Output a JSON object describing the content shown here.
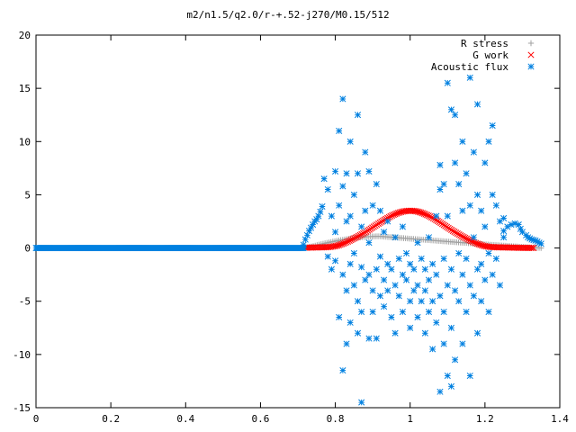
{
  "chart_data": {
    "type": "scatter",
    "title": "m2/n1.5/q2.0/r-+.52-j270/M0.15/512",
    "xlabel": "",
    "ylabel": "",
    "xlim": [
      0,
      1.4
    ],
    "ylim": [
      -15,
      20
    ],
    "x_ticks": [
      "0",
      "0.2",
      "0.4",
      "0.6",
      "0.8",
      "1",
      "1.2",
      "1.4"
    ],
    "y_ticks": [
      "20",
      "15",
      "10",
      "5",
      "0",
      "-5",
      "-10",
      "-15"
    ],
    "grid": false,
    "legend_position": "top-right",
    "series": [
      {
        "name": "R stress",
        "marker": "+",
        "color": "#a0a0a0",
        "curve": "r_stress",
        "x_range": [
          0.72,
          1.35
        ],
        "peak": {
          "x": 0.92,
          "y": 1.1
        }
      },
      {
        "name": "G work",
        "marker": "x",
        "color": "#ff0000",
        "curve": "g_work",
        "x_range": [
          0.72,
          1.33
        ],
        "peak": {
          "x": 1.0,
          "y": 3.5
        }
      },
      {
        "name": "Acoustic flux",
        "marker": "*",
        "color": "#0080e0",
        "curve": "acoustic_flux",
        "zero_region_x": [
          0.0,
          0.715
        ],
        "inner_branch": [
          [
            0.715,
            0.3
          ],
          [
            0.72,
            0.8
          ],
          [
            0.725,
            1.2
          ],
          [
            0.73,
            1.6
          ],
          [
            0.735,
            1.9
          ],
          [
            0.74,
            2.2
          ],
          [
            0.745,
            2.5
          ],
          [
            0.75,
            2.7
          ],
          [
            0.755,
            3.0
          ],
          [
            0.76,
            3.4
          ],
          [
            0.765,
            3.9
          ]
        ],
        "outer_branch": [
          [
            1.25,
            1.6
          ],
          [
            1.26,
            2.0
          ],
          [
            1.27,
            2.2
          ],
          [
            1.28,
            2.3
          ],
          [
            1.29,
            2.2
          ],
          [
            1.295,
            1.8
          ],
          [
            1.3,
            1.5
          ],
          [
            1.31,
            1.2
          ],
          [
            1.315,
            1.0
          ],
          [
            1.32,
            0.9
          ],
          [
            1.325,
            0.8
          ],
          [
            1.33,
            0.75
          ],
          [
            1.335,
            0.7
          ],
          [
            1.34,
            0.6
          ],
          [
            1.345,
            0.5
          ],
          [
            1.35,
            0.4
          ]
        ],
        "scatter": [
          [
            0.77,
            6.5
          ],
          [
            0.78,
            5.5
          ],
          [
            0.78,
            -0.8
          ],
          [
            0.79,
            3.0
          ],
          [
            0.79,
            -2.0
          ],
          [
            0.8,
            7.2
          ],
          [
            0.8,
            1.5
          ],
          [
            0.8,
            -1.2
          ],
          [
            0.81,
            4.0
          ],
          [
            0.81,
            11.0
          ],
          [
            0.81,
            -6.5
          ],
          [
            0.82,
            14.0
          ],
          [
            0.82,
            5.8
          ],
          [
            0.82,
            -2.5
          ],
          [
            0.82,
            -11.5
          ],
          [
            0.83,
            7.0
          ],
          [
            0.83,
            2.5
          ],
          [
            0.83,
            -9.0
          ],
          [
            0.83,
            -4.0
          ],
          [
            0.84,
            10.0
          ],
          [
            0.84,
            3.0
          ],
          [
            0.84,
            -1.5
          ],
          [
            0.84,
            -7.0
          ],
          [
            0.85,
            5.0
          ],
          [
            0.85,
            -0.5
          ],
          [
            0.85,
            -3.5
          ],
          [
            0.86,
            7.0
          ],
          [
            0.86,
            12.5
          ],
          [
            0.86,
            -5.0
          ],
          [
            0.86,
            -8.0
          ],
          [
            0.87,
            2.0
          ],
          [
            0.87,
            -1.8
          ],
          [
            0.87,
            -6.0
          ],
          [
            0.87,
            -14.5
          ],
          [
            0.88,
            9.0
          ],
          [
            0.88,
            3.5
          ],
          [
            0.88,
            -3.0
          ],
          [
            0.89,
            7.2
          ],
          [
            0.89,
            0.5
          ],
          [
            0.89,
            -2.5
          ],
          [
            0.89,
            -8.5
          ],
          [
            0.9,
            4.0
          ],
          [
            0.9,
            -4.0
          ],
          [
            0.9,
            -6.0
          ],
          [
            0.91,
            6.0
          ],
          [
            0.91,
            -2.0
          ],
          [
            0.91,
            -8.5
          ],
          [
            0.92,
            3.5
          ],
          [
            0.92,
            -0.8
          ],
          [
            0.92,
            -4.5
          ],
          [
            0.93,
            1.5
          ],
          [
            0.93,
            -3.0
          ],
          [
            0.93,
            -5.5
          ],
          [
            0.94,
            2.5
          ],
          [
            0.94,
            -1.5
          ],
          [
            0.94,
            -4.0
          ],
          [
            0.95,
            -2.0
          ],
          [
            0.95,
            -6.5
          ],
          [
            0.96,
            1.0
          ],
          [
            0.96,
            -3.5
          ],
          [
            0.96,
            -8.0
          ],
          [
            0.97,
            -1.0
          ],
          [
            0.97,
            -4.5
          ],
          [
            0.98,
            2.0
          ],
          [
            0.98,
            -2.5
          ],
          [
            0.98,
            -6.0
          ],
          [
            0.99,
            -0.5
          ],
          [
            0.99,
            -3.0
          ],
          [
            1.0,
            -1.5
          ],
          [
            1.0,
            -5.0
          ],
          [
            1.0,
            -7.5
          ],
          [
            1.01,
            -2.0
          ],
          [
            1.01,
            -4.0
          ],
          [
            1.02,
            0.5
          ],
          [
            1.02,
            -3.5
          ],
          [
            1.02,
            -6.5
          ],
          [
            1.03,
            -1.0
          ],
          [
            1.03,
            -5.0
          ],
          [
            1.04,
            -2.0
          ],
          [
            1.04,
            -8.0
          ],
          [
            1.04,
            -4.0
          ],
          [
            1.05,
            1.0
          ],
          [
            1.05,
            -3.0
          ],
          [
            1.05,
            -6.0
          ],
          [
            1.06,
            -1.5
          ],
          [
            1.06,
            -5.0
          ],
          [
            1.06,
            -9.5
          ],
          [
            1.07,
            3.0
          ],
          [
            1.07,
            -2.5
          ],
          [
            1.07,
            -7.0
          ],
          [
            1.08,
            7.8
          ],
          [
            1.08,
            5.5
          ],
          [
            1.08,
            -4.5
          ],
          [
            1.08,
            -13.5
          ],
          [
            1.09,
            6.0
          ],
          [
            1.09,
            -1.0
          ],
          [
            1.09,
            -6.0
          ],
          [
            1.09,
            -9.0
          ],
          [
            1.1,
            15.5
          ],
          [
            1.1,
            3.0
          ],
          [
            1.1,
            -3.5
          ],
          [
            1.1,
            -12.0
          ],
          [
            1.11,
            13.0
          ],
          [
            1.11,
            -2.0
          ],
          [
            1.11,
            -7.5
          ],
          [
            1.11,
            -13.0
          ],
          [
            1.12,
            12.5
          ],
          [
            1.12,
            8.0
          ],
          [
            1.12,
            -4.0
          ],
          [
            1.12,
            -10.5
          ],
          [
            1.13,
            6.0
          ],
          [
            1.13,
            -0.5
          ],
          [
            1.13,
            -5.0
          ],
          [
            1.14,
            10.0
          ],
          [
            1.14,
            3.5
          ],
          [
            1.14,
            -2.5
          ],
          [
            1.14,
            -9.0
          ],
          [
            1.15,
            7.0
          ],
          [
            1.15,
            -1.0
          ],
          [
            1.15,
            -6.0
          ],
          [
            1.16,
            16.0
          ],
          [
            1.16,
            4.0
          ],
          [
            1.16,
            -3.5
          ],
          [
            1.16,
            -12.0
          ],
          [
            1.17,
            9.0
          ],
          [
            1.17,
            1.0
          ],
          [
            1.17,
            -4.5
          ],
          [
            1.18,
            13.5
          ],
          [
            1.18,
            5.0
          ],
          [
            1.18,
            -2.0
          ],
          [
            1.18,
            -8.0
          ],
          [
            1.19,
            3.5
          ],
          [
            1.19,
            -1.5
          ],
          [
            1.19,
            -5.0
          ],
          [
            1.2,
            8.0
          ],
          [
            1.2,
            2.0
          ],
          [
            1.2,
            -3.0
          ],
          [
            1.21,
            10.0
          ],
          [
            1.21,
            -0.5
          ],
          [
            1.21,
            -6.0
          ],
          [
            1.22,
            11.5
          ],
          [
            1.22,
            5.0
          ],
          [
            1.22,
            -2.5
          ],
          [
            1.23,
            4.0
          ],
          [
            1.23,
            -1.0
          ],
          [
            1.24,
            2.5
          ],
          [
            1.24,
            -3.5
          ],
          [
            1.25,
            2.8
          ],
          [
            1.25,
            1.0
          ]
        ]
      }
    ]
  }
}
